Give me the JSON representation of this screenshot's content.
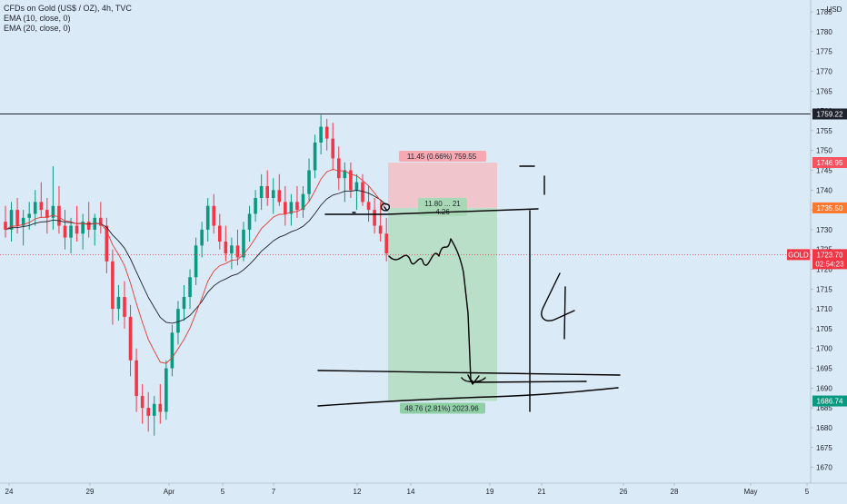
{
  "legend": {
    "title": "CFDs on Gold (US$ / OZ), 4h, TVC",
    "ema10": "EMA (10, close, 0)",
    "ema20": "EMA (20, close, 0)"
  },
  "currency": "USD",
  "colors": {
    "background": "#dbeaf7",
    "up": "#089981",
    "down": "#f23645",
    "ema10": "#e53935",
    "ema20": "#1e222d",
    "profit_zone": "#b9dfc8",
    "loss_zone": "#f0c6cc",
    "current_tag": "#f23645",
    "stop_tag": "#f7525f",
    "entry_tag": "#ff7a2f",
    "target_tag": "#089981"
  },
  "chart_data": {
    "type": "candlestick",
    "symbol": "GOLD",
    "timeframe": "4h",
    "ylim": [
      1666,
      1788
    ],
    "y_ticks": [
      1670,
      1675,
      1680,
      1685,
      1690,
      1695,
      1700,
      1705,
      1710,
      1715,
      1720,
      1725,
      1730,
      1735,
      1740,
      1745,
      1750,
      1755,
      1760,
      1765,
      1770,
      1775,
      1780,
      1785
    ],
    "x_ticks": [
      "24",
      "29",
      "Apr",
      "5",
      "7",
      "12",
      "14",
      "19",
      "21",
      "26",
      "28",
      "May",
      "5"
    ],
    "candles": [
      {
        "o": 1732,
        "h": 1736,
        "l": 1728,
        "c": 1730
      },
      {
        "o": 1730,
        "h": 1737,
        "l": 1727,
        "c": 1735
      },
      {
        "o": 1735,
        "h": 1738,
        "l": 1729,
        "c": 1731
      },
      {
        "o": 1731,
        "h": 1735,
        "l": 1726,
        "c": 1733
      },
      {
        "o": 1733,
        "h": 1737,
        "l": 1730,
        "c": 1734
      },
      {
        "o": 1734,
        "h": 1740,
        "l": 1731,
        "c": 1737
      },
      {
        "o": 1737,
        "h": 1742,
        "l": 1733,
        "c": 1735
      },
      {
        "o": 1735,
        "h": 1738,
        "l": 1729,
        "c": 1733
      },
      {
        "o": 1733,
        "h": 1746,
        "l": 1730,
        "c": 1736
      },
      {
        "o": 1736,
        "h": 1741,
        "l": 1729,
        "c": 1731
      },
      {
        "o": 1731,
        "h": 1735,
        "l": 1725,
        "c": 1728
      },
      {
        "o": 1728,
        "h": 1733,
        "l": 1724,
        "c": 1731
      },
      {
        "o": 1731,
        "h": 1736,
        "l": 1727,
        "c": 1729
      },
      {
        "o": 1729,
        "h": 1734,
        "l": 1725,
        "c": 1732
      },
      {
        "o": 1732,
        "h": 1737,
        "l": 1728,
        "c": 1730
      },
      {
        "o": 1730,
        "h": 1734,
        "l": 1726,
        "c": 1733
      },
      {
        "o": 1733,
        "h": 1737,
        "l": 1729,
        "c": 1731
      },
      {
        "o": 1731,
        "h": 1733,
        "l": 1719,
        "c": 1722
      },
      {
        "o": 1722,
        "h": 1725,
        "l": 1706,
        "c": 1710
      },
      {
        "o": 1710,
        "h": 1716,
        "l": 1707,
        "c": 1713
      },
      {
        "o": 1713,
        "h": 1717,
        "l": 1705,
        "c": 1708
      },
      {
        "o": 1708,
        "h": 1711,
        "l": 1693,
        "c": 1697
      },
      {
        "o": 1697,
        "h": 1700,
        "l": 1684,
        "c": 1688
      },
      {
        "o": 1688,
        "h": 1691,
        "l": 1681,
        "c": 1685
      },
      {
        "o": 1685,
        "h": 1689,
        "l": 1679,
        "c": 1683
      },
      {
        "o": 1683,
        "h": 1688,
        "l": 1678,
        "c": 1686
      },
      {
        "o": 1686,
        "h": 1691,
        "l": 1681,
        "c": 1684
      },
      {
        "o": 1684,
        "h": 1697,
        "l": 1682,
        "c": 1695
      },
      {
        "o": 1695,
        "h": 1706,
        "l": 1693,
        "c": 1704
      },
      {
        "o": 1704,
        "h": 1712,
        "l": 1701,
        "c": 1710
      },
      {
        "o": 1710,
        "h": 1716,
        "l": 1707,
        "c": 1713
      },
      {
        "o": 1713,
        "h": 1720,
        "l": 1710,
        "c": 1718
      },
      {
        "o": 1718,
        "h": 1728,
        "l": 1716,
        "c": 1726
      },
      {
        "o": 1726,
        "h": 1732,
        "l": 1723,
        "c": 1730
      },
      {
        "o": 1730,
        "h": 1738,
        "l": 1727,
        "c": 1736
      },
      {
        "o": 1736,
        "h": 1739,
        "l": 1729,
        "c": 1731
      },
      {
        "o": 1731,
        "h": 1734,
        "l": 1725,
        "c": 1727
      },
      {
        "o": 1727,
        "h": 1731,
        "l": 1722,
        "c": 1724
      },
      {
        "o": 1724,
        "h": 1728,
        "l": 1720,
        "c": 1726
      },
      {
        "o": 1726,
        "h": 1730,
        "l": 1721,
        "c": 1723
      },
      {
        "o": 1723,
        "h": 1732,
        "l": 1722,
        "c": 1730
      },
      {
        "o": 1730,
        "h": 1736,
        "l": 1727,
        "c": 1734
      },
      {
        "o": 1734,
        "h": 1740,
        "l": 1732,
        "c": 1738
      },
      {
        "o": 1738,
        "h": 1744,
        "l": 1735,
        "c": 1741
      },
      {
        "o": 1741,
        "h": 1745,
        "l": 1736,
        "c": 1738
      },
      {
        "o": 1738,
        "h": 1743,
        "l": 1734,
        "c": 1740
      },
      {
        "o": 1740,
        "h": 1744,
        "l": 1736,
        "c": 1737
      },
      {
        "o": 1737,
        "h": 1741,
        "l": 1731,
        "c": 1734
      },
      {
        "o": 1734,
        "h": 1739,
        "l": 1731,
        "c": 1737
      },
      {
        "o": 1737,
        "h": 1741,
        "l": 1733,
        "c": 1735
      },
      {
        "o": 1735,
        "h": 1741,
        "l": 1733,
        "c": 1739
      },
      {
        "o": 1739,
        "h": 1748,
        "l": 1737,
        "c": 1745
      },
      {
        "o": 1745,
        "h": 1754,
        "l": 1743,
        "c": 1752
      },
      {
        "o": 1752,
        "h": 1759,
        "l": 1749,
        "c": 1756
      },
      {
        "o": 1756,
        "h": 1758,
        "l": 1750,
        "c": 1753
      },
      {
        "o": 1753,
        "h": 1757,
        "l": 1745,
        "c": 1748
      },
      {
        "o": 1748,
        "h": 1751,
        "l": 1740,
        "c": 1743
      },
      {
        "o": 1743,
        "h": 1747,
        "l": 1737,
        "c": 1745
      },
      {
        "o": 1745,
        "h": 1747,
        "l": 1738,
        "c": 1740
      },
      {
        "o": 1740,
        "h": 1744,
        "l": 1735,
        "c": 1742
      },
      {
        "o": 1742,
        "h": 1744,
        "l": 1736,
        "c": 1737
      },
      {
        "o": 1737,
        "h": 1741,
        "l": 1732,
        "c": 1735
      },
      {
        "o": 1735,
        "h": 1738,
        "l": 1729,
        "c": 1731
      },
      {
        "o": 1731,
        "h": 1737,
        "l": 1727,
        "c": 1729
      },
      {
        "o": 1729,
        "h": 1733,
        "l": 1722,
        "c": 1724
      }
    ],
    "horizontal_line": {
      "price": 1759.22,
      "label": "1759.22"
    },
    "current_price": {
      "price": 1723.7,
      "label": "1723.70",
      "symbol_tag": "GOLD",
      "countdown": "02:54:23"
    },
    "price_tags": [
      {
        "price": 1746.95,
        "label": "1746.95"
      },
      {
        "price": 1735.5,
        "label": "1735.50"
      },
      {
        "price": 1686.74,
        "label": "1686.74"
      }
    ],
    "short_position": {
      "entry": 1735.5,
      "stop": 1746.95,
      "target": 1686.74,
      "stop_label": "11.45 (0.66%) 759.55",
      "entry_label": "11.80 ... 21",
      "ratio_label": "4.26",
      "target_label": "48.76 (2.81%) 2023.96"
    },
    "handwritten_label": "4"
  }
}
